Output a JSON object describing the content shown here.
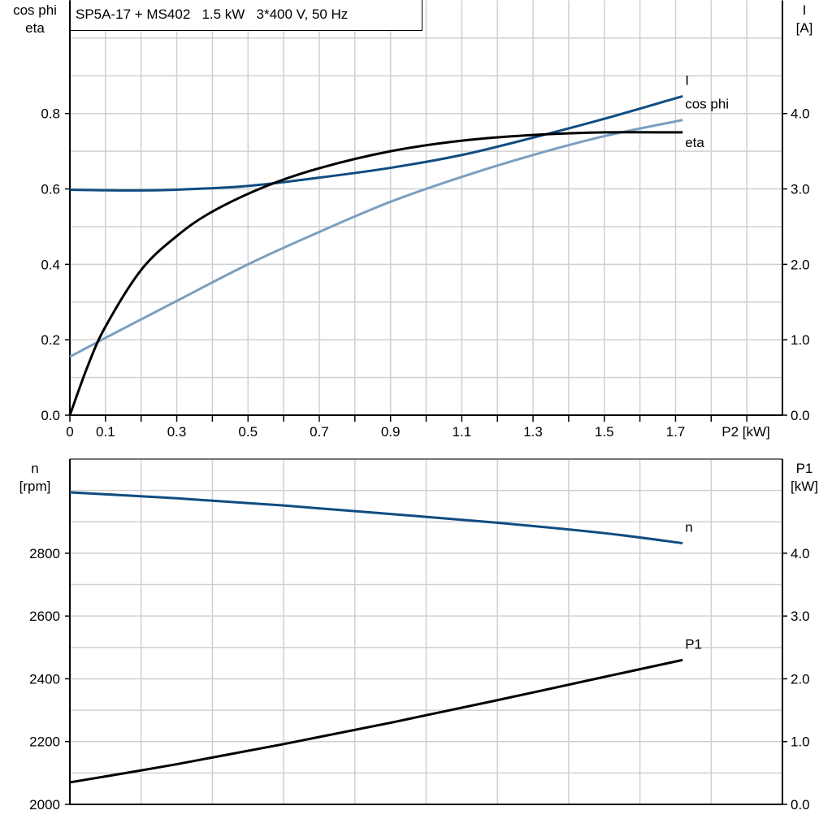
{
  "title": "SP5A-17 + MS402   1.5 kW   3*400 V, 50 Hz",
  "colors": {
    "I": "#0f4c81",
    "cos_phi": "#7a9fc0",
    "eta": "#000000",
    "n": "#0f4c81",
    "P1": "#000000",
    "grid": "#d0d0d0"
  },
  "chart_data": [
    {
      "type": "line",
      "xlabel": "P2 [kW]",
      "xlim": [
        0,
        2.0
      ],
      "x_tick_labels": [
        "0",
        "0.1",
        "0.3",
        "0.5",
        "0.7",
        "0.9",
        "1.1",
        "1.3",
        "1.5",
        "1.7"
      ],
      "grid": true,
      "left_axis": {
        "label_line1": "cos phi",
        "label_line2": "eta",
        "ylim": [
          0,
          1.1
        ],
        "tick_labels": [
          "0.0",
          "0.2",
          "0.4",
          "0.6",
          "0.8"
        ]
      },
      "right_axis": {
        "label_line1": "I",
        "label_line2": "[A]",
        "ylim": [
          0,
          5.5
        ],
        "tick_labels": [
          "0.0",
          "1.0",
          "2.0",
          "3.0",
          "4.0"
        ]
      },
      "series": [
        {
          "name": "I",
          "axis": "right",
          "x": [
            0,
            0.15,
            0.3,
            0.5,
            0.7,
            0.9,
            1.1,
            1.3,
            1.5,
            1.72
          ],
          "y": [
            2.99,
            2.98,
            2.99,
            3.04,
            3.15,
            3.28,
            3.45,
            3.68,
            3.93,
            4.23
          ]
        },
        {
          "name": "cos phi",
          "axis": "left",
          "x": [
            0,
            0.1,
            0.3,
            0.5,
            0.7,
            0.9,
            1.1,
            1.3,
            1.5,
            1.72
          ],
          "y": [
            0.155,
            0.205,
            0.303,
            0.4,
            0.486,
            0.566,
            0.632,
            0.69,
            0.74,
            0.783
          ]
        },
        {
          "name": "eta",
          "axis": "left",
          "x": [
            0,
            0.05,
            0.1,
            0.2,
            0.3,
            0.4,
            0.55,
            0.7,
            0.9,
            1.1,
            1.3,
            1.5,
            1.72
          ],
          "y": [
            0,
            0.13,
            0.235,
            0.385,
            0.475,
            0.54,
            0.607,
            0.655,
            0.7,
            0.728,
            0.743,
            0.75,
            0.75
          ]
        }
      ]
    },
    {
      "type": "line",
      "xlim": [
        0,
        2.0
      ],
      "grid": true,
      "left_axis": {
        "label_line1": "n",
        "label_line2": "[rpm]",
        "ylim": [
          2000,
          3100
        ],
        "tick_labels": [
          "2000",
          "2200",
          "2400",
          "2600",
          "2800"
        ]
      },
      "right_axis": {
        "label_line1": "P1",
        "label_line2": "[kW]",
        "ylim": [
          0,
          5.5
        ],
        "tick_labels": [
          "0.0",
          "1.0",
          "2.0",
          "3.0",
          "4.0"
        ]
      },
      "series": [
        {
          "name": "n",
          "axis": "left",
          "x": [
            0,
            0.3,
            0.6,
            0.9,
            1.2,
            1.5,
            1.72
          ],
          "y": [
            2994,
            2975,
            2952,
            2925,
            2897,
            2864,
            2832
          ]
        },
        {
          "name": "P1",
          "axis": "right",
          "x": [
            0,
            0.3,
            0.6,
            0.9,
            1.2,
            1.5,
            1.72
          ],
          "y": [
            0.35,
            0.64,
            0.96,
            1.3,
            1.66,
            2.03,
            2.3
          ]
        }
      ]
    }
  ]
}
